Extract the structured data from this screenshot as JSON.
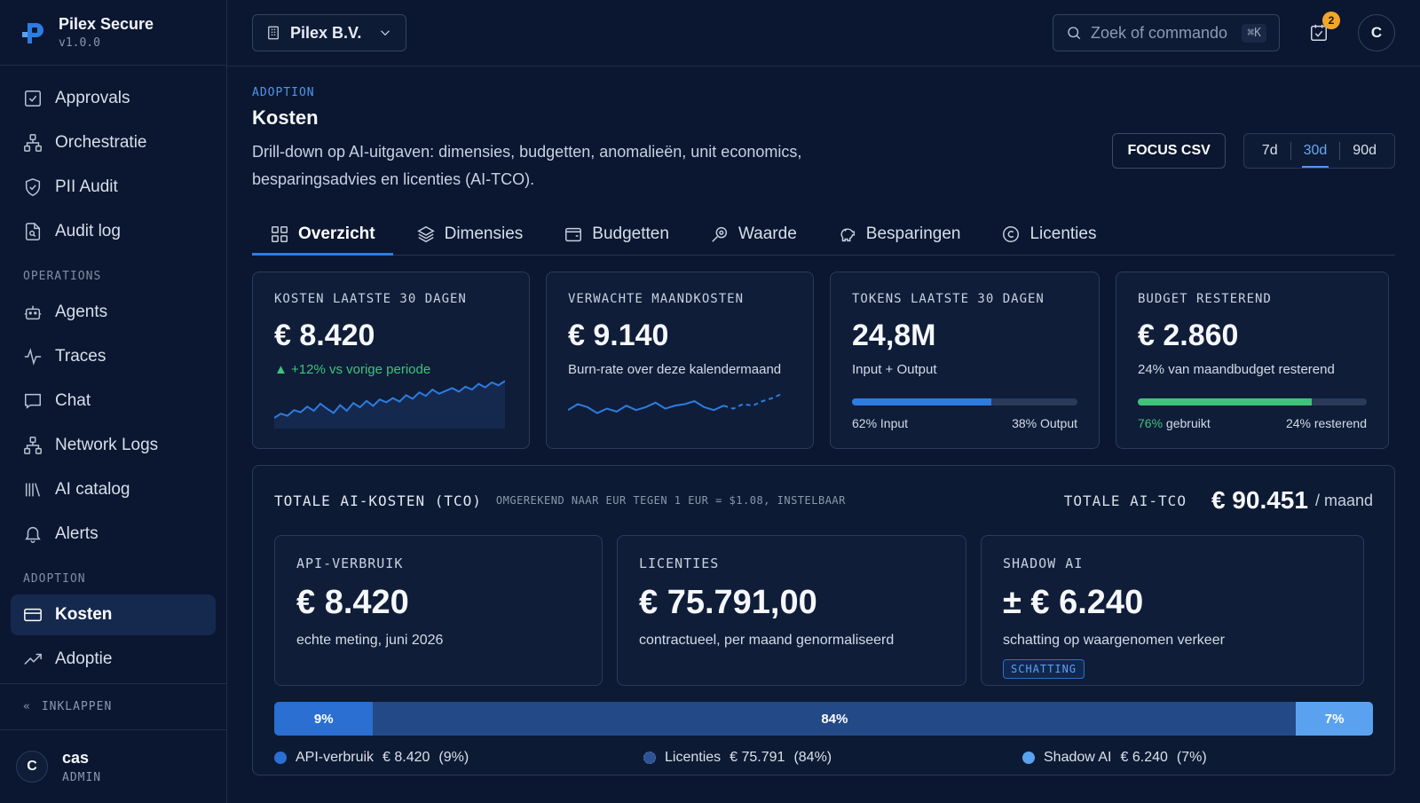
{
  "brand": {
    "name": "Pilex Secure",
    "version": "v1.0.0"
  },
  "nav": {
    "main": [
      {
        "label": "Approvals",
        "icon": "check-square-icon"
      },
      {
        "label": "Orchestratie",
        "icon": "hierarchy-icon"
      },
      {
        "label": "PII Audit",
        "icon": "shield-check-icon"
      },
      {
        "label": "Audit log",
        "icon": "file-search-icon"
      }
    ],
    "operations_label": "OPERATIONS",
    "operations": [
      {
        "label": "Agents",
        "icon": "bot-icon"
      },
      {
        "label": "Traces",
        "icon": "activity-icon"
      },
      {
        "label": "Chat",
        "icon": "chat-icon"
      },
      {
        "label": "Network Logs",
        "icon": "network-icon"
      },
      {
        "label": "AI catalog",
        "icon": "library-icon"
      },
      {
        "label": "Alerts",
        "icon": "bell-icon"
      }
    ],
    "adoption_label": "ADOPTION",
    "adoption": [
      {
        "label": "Kosten",
        "icon": "card-icon",
        "active": true
      },
      {
        "label": "Adoptie",
        "icon": "trending-up-icon"
      }
    ],
    "collapse_label": "INKLAPPEN"
  },
  "user": {
    "initial": "C",
    "name": "cas",
    "role": "ADMIN"
  },
  "topbar": {
    "org": "Pilex B.V.",
    "search_placeholder": "Zoek of commando",
    "search_shortcut": "⌘K",
    "notifications": "2",
    "avatar_initial": "C"
  },
  "header": {
    "eyebrow": "ADOPTION",
    "title": "Kosten",
    "description": "Drill-down op AI-uitgaven: dimensies, budgetten, anomalieën, unit economics, besparingsadvies en licenties (AI-TCO).",
    "csv_button": "FOCUS CSV",
    "ranges": [
      "7d",
      "30d",
      "90d"
    ],
    "selected_range": "30d"
  },
  "tabs": [
    {
      "label": "Overzicht",
      "icon": "grid-icon",
      "active": true
    },
    {
      "label": "Dimensies",
      "icon": "layers-icon"
    },
    {
      "label": "Budgetten",
      "icon": "wallet-icon"
    },
    {
      "label": "Waarde",
      "icon": "value-icon"
    },
    {
      "label": "Besparingen",
      "icon": "piggy-bank-icon"
    },
    {
      "label": "Licenties",
      "icon": "copyright-icon"
    }
  ],
  "kpis": [
    {
      "label": "KOSTEN LAATSTE 30 DAGEN",
      "value": "€ 8.420",
      "sub": "+12% vs vorige periode",
      "trend": "up",
      "spark": [
        20,
        26,
        23,
        31,
        28,
        36,
        30,
        40,
        33,
        27,
        38,
        30,
        41,
        35,
        44,
        37,
        46,
        42,
        48,
        43,
        52,
        47,
        56,
        51,
        60,
        54,
        58,
        62,
        57,
        64,
        60,
        68,
        63,
        70,
        66,
        72
      ]
    },
    {
      "label": "VERWACHTE MAANDKOSTEN",
      "value": "€ 9.140",
      "sub": "Burn-rate over deze kalendermaand",
      "spark_actual": [
        30,
        34,
        32,
        28,
        31,
        29,
        33,
        30,
        32,
        35,
        31,
        33,
        34,
        36,
        32,
        30,
        33
      ],
      "spark_forecast": [
        33,
        31,
        34,
        33,
        36,
        38,
        41
      ]
    },
    {
      "label": "TOKENS LAATSTE 30 DAGEN",
      "value": "24,8M",
      "sub": "Input + Output",
      "split": [
        62,
        38
      ],
      "legend_left": "62% Input",
      "legend_right": "38% Output"
    },
    {
      "label": "BUDGET RESTEREND",
      "value": "€ 2.860",
      "sub": "24% van maandbudget resterend",
      "split": [
        76,
        24
      ],
      "legend_left_pct": "76%",
      "legend_left_text": " gebruikt",
      "legend_right": "24% resterend"
    }
  ],
  "tco": {
    "title": "TOTALE AI-KOSTEN (TCO)",
    "note": "OMGEREKEND NAAR EUR TEGEN 1 EUR = $1.08, INSTELBAAR",
    "total_label": "TOTALE AI-TCO",
    "total": "€ 90.451",
    "unit": "/ maand",
    "cards": [
      {
        "label": "API-VERBRUIK",
        "value": "€ 8.420",
        "sub": "echte meting, juni 2026"
      },
      {
        "label": "LICENTIES",
        "value": "€ 75.791,00",
        "sub": "contractueel, per maand genormaliseerd"
      },
      {
        "label": "SHADOW AI",
        "value": "± € 6.240",
        "sub": "schatting op waargenomen verkeer",
        "tag": "SCHATTING"
      }
    ],
    "split": [
      {
        "pct": 9,
        "label": "9%",
        "color": "#2a6fd1"
      },
      {
        "pct": 84,
        "label": "84%",
        "color": "#234a86"
      },
      {
        "pct": 7,
        "label": "7%",
        "color": "#5aa2f0"
      }
    ],
    "legend": [
      {
        "name": "API-verbruik",
        "value": "€ 8.420",
        "pct": "(9%)",
        "color": "#2a6fd1"
      },
      {
        "name": "Licenties",
        "value": "€ 75.791",
        "pct": "(84%)",
        "color": "#2d5394"
      },
      {
        "name": "Shadow AI",
        "value": "€ 6.240",
        "pct": "(7%)",
        "color": "#5aa2f0"
      }
    ]
  },
  "colors": {
    "accent": "#2d7ce0",
    "positive": "#3fc37a",
    "warning": "#f0a52b",
    "input_bar": "#2d7ce0",
    "output_bar": "#2a3a58"
  }
}
